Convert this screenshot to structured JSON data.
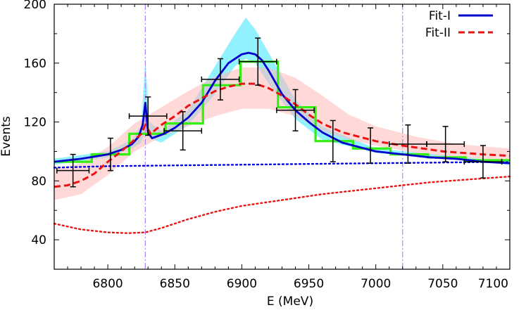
{
  "chart_data": {
    "type": "line",
    "xlabel": "E (MeV)",
    "ylabel": "Events",
    "xlim": [
      6760,
      7100
    ],
    "ylim": [
      20,
      200
    ],
    "x_ticks": [
      6800,
      6850,
      6900,
      6950,
      7000,
      7050,
      7100
    ],
    "x_tick_labels": [
      "6800",
      "6850",
      "6900",
      "6950",
      "7000",
      "7050",
      "7100"
    ],
    "y_ticks": [
      40,
      80,
      120,
      160,
      200
    ],
    "y_tick_labels": [
      "40",
      "80",
      "120",
      "160",
      "200"
    ],
    "legend": {
      "position": "top-right",
      "entries": [
        "Fit-I",
        "Fit-II"
      ]
    },
    "colors": {
      "fit1": "#0000cc",
      "fit2": "#ee1111",
      "band1": "#7fefff",
      "band2": "#ffb8b8",
      "histogram": "#33ee11",
      "vline": "#aa88ee",
      "background1": "#0000dd",
      "background2": "#ee1111"
    },
    "vlines": [
      6828,
      7020
    ],
    "data_points": [
      {
        "x": 6774,
        "xerr": 12,
        "y": 87,
        "yerr": 11
      },
      {
        "x": 6802,
        "xerr": 0,
        "y": 98,
        "yerr": 11
      },
      {
        "x": 6830,
        "xerr": 14,
        "y": 124,
        "yerr": 13
      },
      {
        "x": 6856,
        "xerr": 14,
        "y": 114,
        "yerr": 13
      },
      {
        "x": 6884,
        "xerr": 14,
        "y": 149,
        "yerr": 14
      },
      {
        "x": 6912,
        "xerr": 14,
        "y": 161,
        "yerr": 16
      },
      {
        "x": 6940,
        "xerr": 14,
        "y": 128,
        "yerr": 14
      },
      {
        "x": 6968,
        "xerr": 0,
        "y": 107,
        "yerr": 14
      },
      {
        "x": 6996,
        "xerr": 0,
        "y": 104,
        "yerr": 12
      },
      {
        "x": 7024,
        "xerr": 14,
        "y": 105,
        "yerr": 13
      },
      {
        "x": 7052,
        "xerr": 14,
        "y": 105,
        "yerr": 12
      },
      {
        "x": 7080,
        "xerr": 14,
        "y": 93,
        "yerr": 11
      }
    ],
    "histogram": [
      {
        "x0": 6760,
        "x1": 6788,
        "y": 93
      },
      {
        "x0": 6788,
        "x1": 6816,
        "y": 98
      },
      {
        "x0": 6816,
        "x1": 6843,
        "y": 112
      },
      {
        "x0": 6843,
        "x1": 6871,
        "y": 119
      },
      {
        "x0": 6871,
        "x1": 6899,
        "y": 145
      },
      {
        "x0": 6899,
        "x1": 6927,
        "y": 161
      },
      {
        "x0": 6927,
        "x1": 6955,
        "y": 130
      },
      {
        "x0": 6955,
        "x1": 6983,
        "y": 107
      },
      {
        "x0": 6983,
        "x1": 7011,
        "y": 102
      },
      {
        "x0": 7011,
        "x1": 7039,
        "y": 98
      },
      {
        "x0": 7039,
        "x1": 7067,
        "y": 96
      },
      {
        "x0": 7067,
        "x1": 7100,
        "y": 94
      }
    ],
    "series": [
      {
        "name": "Fit-I",
        "style": "solid",
        "x": [
          6760,
          6780,
          6800,
          6810,
          6818,
          6823,
          6826,
          6828,
          6830,
          6833,
          6836,
          6842,
          6850,
          6860,
          6870,
          6880,
          6890,
          6900,
          6905,
          6910,
          6915,
          6920,
          6930,
          6940,
          6950,
          6960,
          6975,
          7000,
          7020,
          7040,
          7060,
          7080,
          7100
        ],
        "y": [
          93,
          95,
          98,
          101,
          105,
          110,
          118,
          133,
          113,
          109,
          110,
          112,
          116,
          123,
          133,
          148,
          160,
          166,
          167,
          166,
          162,
          155,
          139,
          128,
          120,
          113,
          106,
          100,
          98,
          96,
          95,
          93,
          92
        ]
      },
      {
        "name": "Fit-II",
        "style": "dashed",
        "x": [
          6760,
          6770,
          6780,
          6790,
          6800,
          6810,
          6820,
          6825,
          6828,
          6832,
          6840,
          6850,
          6860,
          6870,
          6880,
          6890,
          6900,
          6910,
          6920,
          6930,
          6940,
          6950,
          6960,
          6975,
          7000,
          7020,
          7050,
          7080,
          7100
        ],
        "y": [
          76,
          77,
          80,
          85,
          93,
          100,
          108,
          112,
          118,
          112,
          118,
          124,
          131,
          136,
          141,
          144,
          146,
          146,
          143,
          138,
          132,
          125,
          119,
          113,
          107,
          104,
          100,
          98,
          97
        ]
      },
      {
        "name": "",
        "style": "dotted",
        "color_key": "background1",
        "x": [
          6760,
          6800,
          6850,
          6900,
          6950,
          7000,
          7050,
          7100
        ],
        "y": [
          89,
          90,
          90.5,
          91,
          91.5,
          92,
          92.5,
          93
        ]
      },
      {
        "name": "",
        "style": "dotted",
        "color_key": "background2",
        "x": [
          6760,
          6780,
          6800,
          6815,
          6828,
          6840,
          6860,
          6880,
          6900,
          6930,
          6960,
          7000,
          7040,
          7070,
          7100
        ],
        "y": [
          51,
          47,
          45,
          44.5,
          45,
          48,
          54,
          59,
          63,
          67,
          71,
          75,
          79,
          81,
          83
        ]
      }
    ],
    "bands": [
      {
        "series": "Fit-I",
        "color_key": "band1",
        "x": [
          6760,
          6800,
          6818,
          6825,
          6828,
          6831,
          6840,
          6860,
          6880,
          6895,
          6903,
          6910,
          6920,
          6940,
          6960,
          7000,
          7100
        ],
        "lower": [
          91,
          96,
          102,
          106,
          114,
          109,
          106,
          118,
          139,
          158,
          163,
          160,
          146,
          122,
          108,
          99,
          91
        ],
        "upper": [
          95,
          100,
          108,
          118,
          163,
          120,
          114,
          128,
          158,
          180,
          191,
          183,
          167,
          135,
          117,
          102,
          93
        ]
      },
      {
        "series": "Fit-II",
        "color_key": "band2",
        "x": [
          6760,
          6780,
          6800,
          6820,
          6840,
          6860,
          6880,
          6900,
          6920,
          6940,
          6960,
          6980,
          7000,
          7030,
          7060,
          7100
        ],
        "lower": [
          67,
          71,
          84,
          100,
          110,
          117,
          124,
          129,
          129,
          124,
          114,
          108,
          104,
          99,
          96,
          94
        ],
        "upper": [
          88,
          92,
          103,
          119,
          130,
          141,
          151,
          157,
          157,
          150,
          138,
          125,
          117,
          110,
          105,
          102
        ]
      }
    ]
  }
}
